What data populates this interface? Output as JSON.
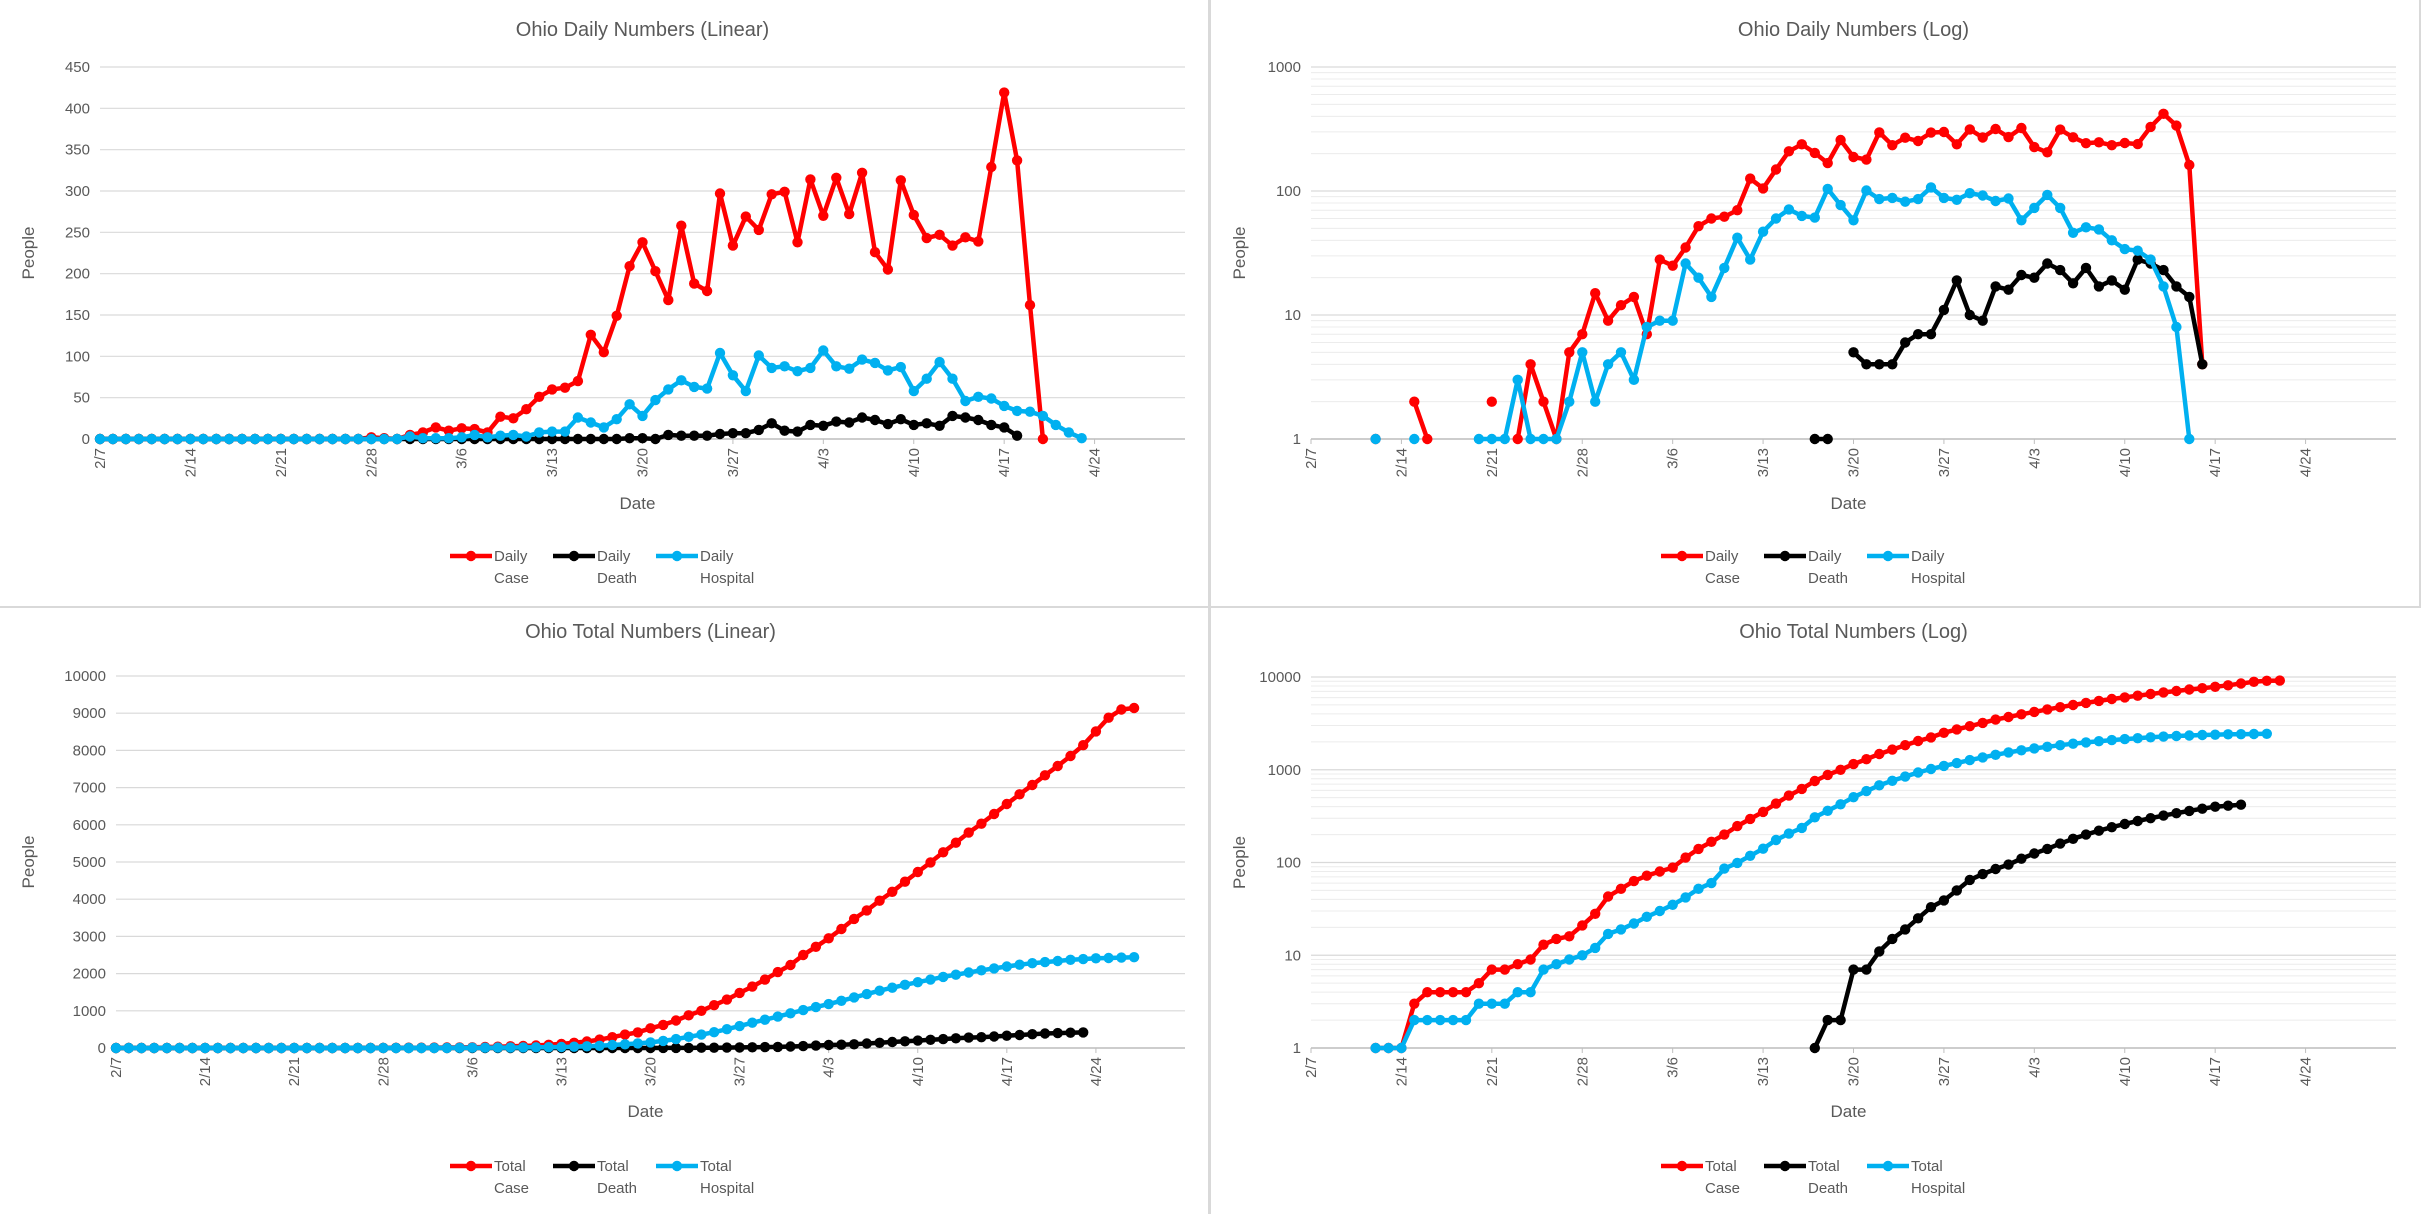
{
  "chart_data": [
    {
      "type": "line",
      "title": "Ohio Daily Numbers (Linear)",
      "xlabel": "Date",
      "ylabel": "People",
      "scale": "linear",
      "ylim": [
        0,
        450
      ],
      "yticks": [
        "0",
        "50",
        "100",
        "150",
        "200",
        "250",
        "300",
        "350",
        "400",
        "450"
      ],
      "xlim": [
        0,
        84
      ],
      "xticks": [
        "2/7",
        "2/14",
        "2/21",
        "2/28",
        "3/6",
        "3/13",
        "3/20",
        "3/27",
        "4/3",
        "4/10",
        "4/17",
        "4/24"
      ],
      "grid": true,
      "legend_position": "bottom",
      "series": [
        {
          "name": "Daily Case",
          "color": "#ff0000",
          "start_day": 0,
          "values": [
            0,
            0,
            0,
            0,
            0,
            0,
            0,
            0,
            0,
            0,
            0,
            0,
            0,
            0,
            0,
            0,
            0,
            0,
            0,
            0,
            0,
            2,
            1,
            0,
            5,
            8,
            14,
            10,
            13,
            12,
            8,
            27,
            25,
            36,
            51,
            60,
            62,
            70,
            126,
            105,
            149,
            209,
            238,
            203,
            168,
            258,
            188,
            179,
            297,
            234,
            269,
            253,
            296,
            299,
            238,
            314,
            270,
            316,
            272,
            322,
            226,
            205,
            313,
            271,
            243,
            247,
            234,
            244,
            239,
            329,
            419,
            337,
            162,
            0
          ]
        },
        {
          "name": "Daily Death",
          "color": "#000000",
          "start_day": 0,
          "values": [
            0,
            0,
            0,
            0,
            0,
            0,
            0,
            0,
            0,
            0,
            0,
            0,
            0,
            0,
            0,
            0,
            0,
            0,
            0,
            0,
            0,
            0,
            0,
            0,
            0,
            0,
            0,
            0,
            0,
            0,
            0,
            0,
            0,
            0,
            0,
            0,
            0,
            0,
            0,
            0,
            0,
            1,
            1,
            0,
            5,
            4,
            4,
            4,
            6,
            7,
            7,
            11,
            19,
            10,
            9,
            17,
            16,
            21,
            20,
            26,
            23,
            18,
            24,
            17,
            19,
            16,
            28,
            26,
            23,
            17,
            14,
            4
          ]
        },
        {
          "name": "Daily Hospital",
          "color": "#00b0f0",
          "start_day": 0,
          "values": [
            0,
            0,
            0,
            0,
            0,
            0,
            0,
            0,
            0,
            0,
            0,
            0,
            0,
            0,
            0,
            0,
            0,
            0,
            0,
            0,
            0,
            0,
            0,
            0,
            3,
            1,
            1,
            1,
            2,
            5,
            2,
            4,
            5,
            3,
            8,
            9,
            9,
            26,
            20,
            14,
            24,
            42,
            28,
            47,
            60,
            71,
            63,
            61,
            104,
            77,
            58,
            101,
            86,
            88,
            82,
            86,
            107,
            88,
            85,
            96,
            92,
            83,
            87,
            58,
            73,
            93,
            73,
            46,
            51,
            49,
            40,
            34,
            33,
            28,
            17,
            8,
            1
          ]
        }
      ]
    },
    {
      "type": "line",
      "title": "Ohio Daily Numbers (Log)",
      "xlabel": "Date",
      "ylabel": "People",
      "scale": "log",
      "ylim": [
        1,
        1000
      ],
      "yticks": [
        "1",
        "10",
        "100",
        "1000"
      ],
      "xlim": [
        0,
        84
      ],
      "xticks": [
        "2/7",
        "2/14",
        "2/21",
        "2/28",
        "3/6",
        "3/13",
        "3/20",
        "3/27",
        "4/3",
        "4/10",
        "4/17",
        "4/24"
      ],
      "grid": true,
      "legend_position": "bottom",
      "series": [
        {
          "name": "Daily Case",
          "color": "#ff0000",
          "start_day": 5,
          "values": [
            1,
            null,
            null,
            2,
            1,
            null,
            null,
            null,
            null,
            2,
            null,
            1,
            4,
            2,
            1,
            5,
            7,
            15,
            9,
            12,
            14,
            7,
            28,
            25,
            35,
            52,
            60,
            62,
            70,
            126,
            105,
            149,
            209,
            238,
            203,
            168,
            258,
            188,
            179,
            297,
            234,
            269,
            253,
            296,
            299,
            238,
            314,
            270,
            316,
            272,
            322,
            226,
            205,
            313,
            271,
            243,
            247,
            234,
            244,
            239,
            329,
            419,
            337,
            162,
            4
          ]
        },
        {
          "name": "Daily Death",
          "color": "#000000",
          "start_day": 39,
          "values": [
            1,
            1,
            null,
            5,
            4,
            4,
            4,
            6,
            7,
            7,
            11,
            19,
            10,
            9,
            17,
            16,
            21,
            20,
            26,
            23,
            18,
            24,
            17,
            19,
            16,
            28,
            26,
            23,
            17,
            14,
            4
          ]
        },
        {
          "name": "Daily Hospital",
          "color": "#00b0f0",
          "start_day": 5,
          "values": [
            1,
            null,
            null,
            1,
            null,
            null,
            null,
            null,
            1,
            1,
            1,
            3,
            1,
            1,
            1,
            2,
            5,
            2,
            4,
            5,
            3,
            8,
            9,
            9,
            26,
            20,
            14,
            24,
            42,
            28,
            47,
            60,
            71,
            63,
            61,
            104,
            77,
            58,
            101,
            86,
            88,
            82,
            86,
            107,
            88,
            85,
            96,
            92,
            83,
            87,
            58,
            73,
            93,
            73,
            46,
            51,
            49,
            40,
            34,
            33,
            28,
            17,
            8,
            1
          ]
        }
      ]
    },
    {
      "type": "line",
      "title": "Ohio Total Numbers (Linear)",
      "xlabel": "Date",
      "ylabel": "People",
      "scale": "linear",
      "ylim": [
        0,
        10000
      ],
      "yticks": [
        "0",
        "1000",
        "2000",
        "3000",
        "4000",
        "5000",
        "6000",
        "7000",
        "8000",
        "9000",
        "10000"
      ],
      "xlim": [
        0,
        84
      ],
      "xticks": [
        "2/7",
        "2/14",
        "2/21",
        "2/28",
        "3/6",
        "3/13",
        "3/20",
        "3/27",
        "4/3",
        "4/10",
        "4/17",
        "4/24"
      ],
      "grid": true,
      "legend_position": "bottom",
      "series": [
        {
          "name": "Total Case",
          "color": "#ff0000",
          "start_day": 0,
          "values": [
            0,
            0,
            0,
            0,
            0,
            0,
            0,
            0,
            0,
            0,
            0,
            0,
            0,
            0,
            0,
            0,
            0,
            0,
            0,
            0,
            3,
            4,
            5,
            7,
            8,
            10,
            14,
            17,
            20,
            27,
            35,
            45,
            55,
            67,
            86,
            110,
            140,
            175,
            225,
            290,
            360,
            420,
            530,
            620,
            740,
            880,
            1000,
            1150,
            1300,
            1480,
            1650,
            1840,
            2040,
            2230,
            2500,
            2720,
            2950,
            3200,
            3470,
            3700,
            3960,
            4200,
            4470,
            4730,
            4990,
            5260,
            5520,
            5790,
            6030,
            6290,
            6560,
            6820,
            7070,
            7330,
            7580,
            7850,
            8140,
            8510,
            8880,
            9100,
            9140
          ]
        },
        {
          "name": "Total Death",
          "color": "#000000",
          "start_day": 0,
          "values": [
            0,
            0,
            0,
            0,
            0,
            0,
            0,
            0,
            0,
            0,
            0,
            0,
            0,
            0,
            0,
            0,
            0,
            0,
            0,
            0,
            0,
            0,
            0,
            0,
            0,
            0,
            0,
            0,
            0,
            0,
            0,
            0,
            0,
            0,
            0,
            0,
            0,
            0,
            0,
            0,
            0,
            0,
            1,
            2,
            2,
            3,
            7,
            7,
            10,
            15,
            20,
            25,
            30,
            40,
            50,
            65,
            80,
            90,
            100,
            120,
            140,
            160,
            180,
            200,
            220,
            240,
            260,
            280,
            290,
            310,
            330,
            350,
            370,
            390,
            400,
            410,
            420
          ]
        },
        {
          "name": "Total Hospital",
          "color": "#00b0f0",
          "start_day": 0,
          "values": [
            0,
            0,
            0,
            0,
            0,
            0,
            0,
            0,
            0,
            0,
            0,
            0,
            0,
            0,
            0,
            0,
            0,
            0,
            0,
            0,
            0,
            0,
            1,
            2,
            2,
            3,
            4,
            5,
            7,
            8,
            10,
            12,
            15,
            18,
            22,
            28,
            35,
            45,
            60,
            80,
            100,
            125,
            150,
            190,
            240,
            300,
            361,
            424,
            506,
            588,
            679,
            760,
            843,
            933,
            1018,
            1100,
            1180,
            1270,
            1360,
            1450,
            1540,
            1620,
            1700,
            1770,
            1840,
            1910,
            1970,
            2030,
            2090,
            2140,
            2190,
            2240,
            2280,
            2310,
            2340,
            2370,
            2390,
            2410,
            2420,
            2430,
            2440
          ]
        }
      ]
    },
    {
      "type": "line",
      "title": "Ohio Total Numbers (Log)",
      "xlabel": "Date",
      "ylabel": "People",
      "scale": "log",
      "ylim": [
        1,
        10000
      ],
      "yticks": [
        "1",
        "10",
        "100",
        "1000",
        "10000"
      ],
      "xlim": [
        0,
        84
      ],
      "xticks": [
        "2/7",
        "2/14",
        "2/21",
        "2/28",
        "3/6",
        "3/13",
        "3/20",
        "3/27",
        "4/3",
        "4/10",
        "4/17",
        "4/24"
      ],
      "grid": true,
      "legend_position": "bottom",
      "series": [
        {
          "name": "Total Case",
          "color": "#ff0000",
          "start_day": 5,
          "values": [
            1,
            1,
            1,
            3,
            4,
            4,
            4,
            4,
            5,
            7,
            7,
            8,
            9,
            13,
            15,
            16,
            21,
            28,
            43,
            52,
            63,
            72,
            80,
            88,
            113,
            140,
            167,
            200,
            247,
            295,
            351,
            432,
            526,
            622,
            756,
            880,
            1000,
            1150,
            1300,
            1480,
            1650,
            1840,
            2040,
            2230,
            2500,
            2720,
            2950,
            3200,
            3470,
            3700,
            3960,
            4200,
            4470,
            4730,
            4990,
            5260,
            5520,
            5790,
            6030,
            6290,
            6560,
            6820,
            7070,
            7330,
            7580,
            7850,
            8140,
            8510,
            8880,
            9100,
            9140
          ]
        },
        {
          "name": "Total Death",
          "color": "#000000",
          "start_day": 39,
          "values": [
            1,
            2,
            2,
            7,
            7,
            11,
            15,
            19,
            25,
            33,
            39,
            50,
            65,
            75,
            85,
            95,
            110,
            125,
            140,
            160,
            180,
            200,
            220,
            240,
            260,
            280,
            300,
            320,
            340,
            360,
            380,
            400,
            410,
            420
          ]
        },
        {
          "name": "Total Hospital",
          "color": "#00b0f0",
          "start_day": 5,
          "values": [
            1,
            1,
            1,
            2,
            2,
            2,
            2,
            2,
            3,
            3,
            3,
            4,
            4,
            7,
            8,
            9,
            10,
            12,
            17,
            19,
            22,
            26,
            30,
            35,
            42,
            52,
            60,
            86,
            99,
            118,
            141,
            175,
            205,
            236,
            307,
            361,
            424,
            506,
            588,
            679,
            760,
            843,
            933,
            1018,
            1100,
            1180,
            1270,
            1360,
            1450,
            1540,
            1620,
            1700,
            1770,
            1840,
            1910,
            1970,
            2030,
            2090,
            2140,
            2190,
            2240,
            2280,
            2310,
            2340,
            2370,
            2390,
            2410,
            2420,
            2430,
            2440
          ]
        }
      ]
    }
  ]
}
